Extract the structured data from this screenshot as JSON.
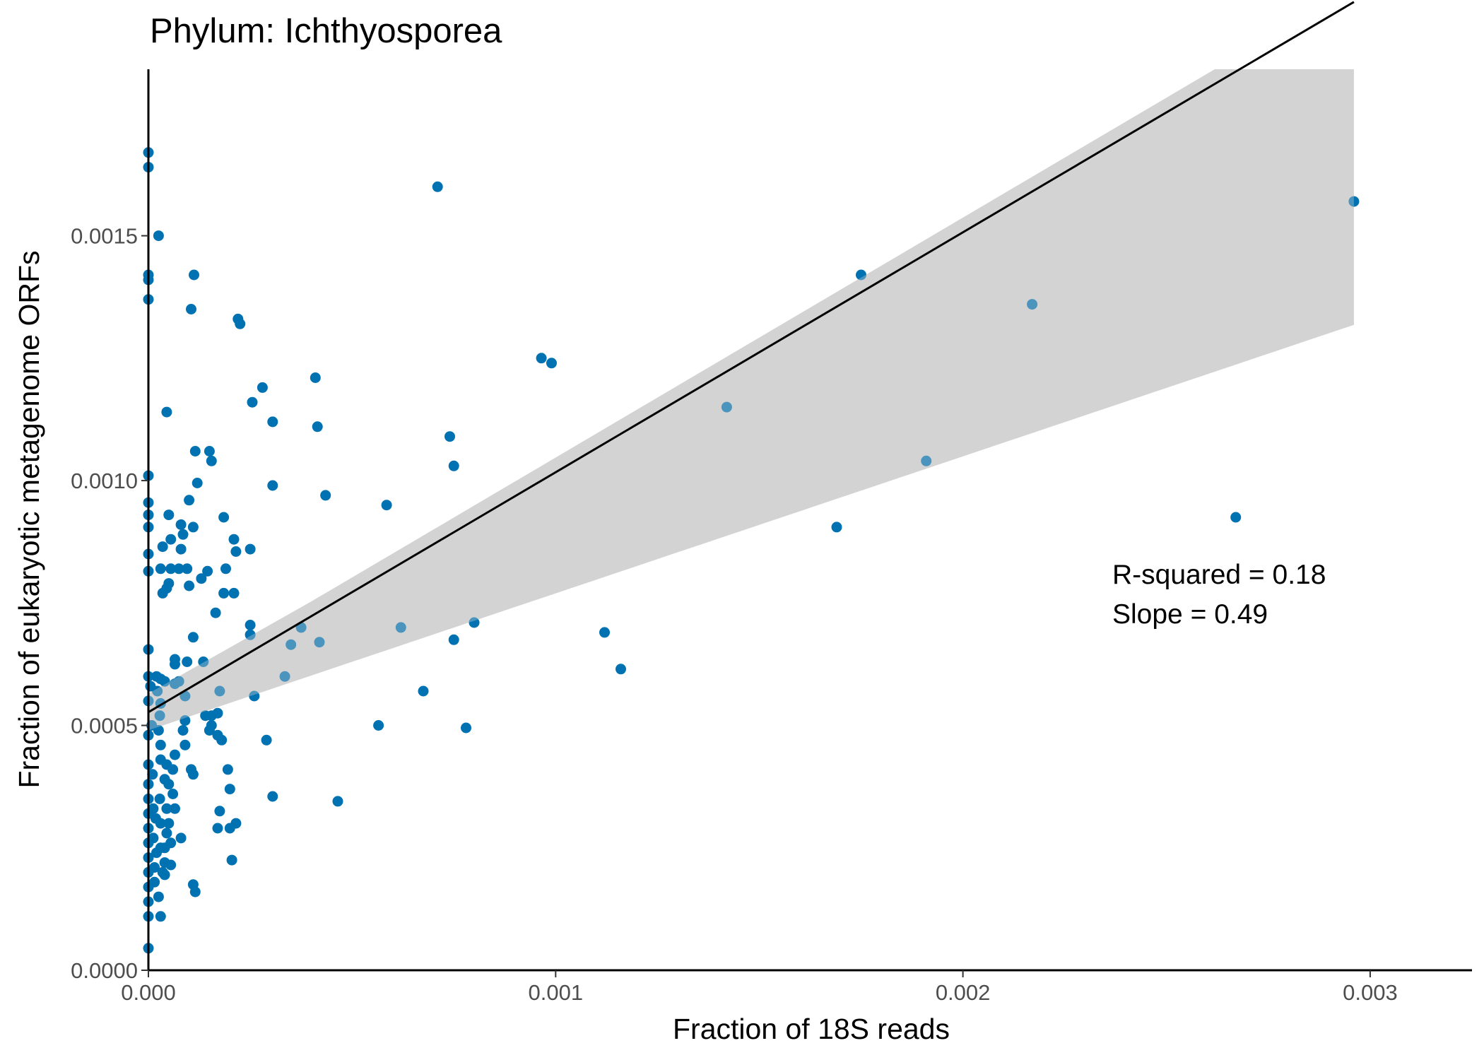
{
  "chart_data": {
    "type": "scatter",
    "title": "Phylum:  Ichthyosporea",
    "xlabel": "Fraction of 18S reads",
    "ylabel": "Fraction of eukaryotic metagenome ORFs",
    "xlim": [
      0,
      0.00325
    ],
    "ylim": [
      0,
      0.00184
    ],
    "x_ticks": [
      0,
      0.001,
      0.002,
      0.003
    ],
    "x_tick_labels": [
      "0.000",
      "0.001",
      "0.002",
      "0.003"
    ],
    "y_ticks": [
      0,
      0.0005,
      0.001,
      0.0015
    ],
    "y_tick_labels": [
      "0.0000",
      "0.0005",
      "0.0010",
      "0.0015"
    ],
    "grid": false,
    "point_color": "#0072B2",
    "fit_line_color": "#000000",
    "ci_band_color": "#D3D3D3",
    "fit": {
      "intercept": 0.000527,
      "slope": 0.49,
      "x_range": [
        0,
        0.00296
      ],
      "ci_lower": [
        [
          0,
          0.00049
        ],
        [
          0.00296,
          0.001318
        ]
      ],
      "ci_upper": [
        [
          0,
          0.000565
        ],
        [
          0.00296,
          0.001957
        ]
      ]
    },
    "annotations": [
      "R-squared =  0.18",
      "Slope =  0.49"
    ],
    "points": [
      [
        0.0,
        0.00167
      ],
      [
        0.0,
        0.00164
      ],
      [
        0.0,
        0.00142
      ],
      [
        0.0,
        0.00141
      ],
      [
        0.0,
        0.00137
      ],
      [
        0.0,
        0.00101
      ],
      [
        0.0,
        0.000955
      ],
      [
        0.0,
        0.00093
      ],
      [
        0.0,
        0.000905
      ],
      [
        0.0,
        0.00085
      ],
      [
        0.0,
        0.000815
      ],
      [
        0.0,
        0.000655
      ],
      [
        0.0,
        0.0006
      ],
      [
        0.0,
        0.00055
      ],
      [
        0.0,
        0.00048
      ],
      [
        0.0,
        0.00042
      ],
      [
        0.0,
        0.00038
      ],
      [
        0.0,
        0.00035
      ],
      [
        0.0,
        0.00032
      ],
      [
        0.0,
        0.00029
      ],
      [
        0.0,
        0.00026
      ],
      [
        0.0,
        0.00023
      ],
      [
        0.0,
        0.0002
      ],
      [
        0.0,
        0.00017
      ],
      [
        0.0,
        0.00014
      ],
      [
        0.0,
        0.00011
      ],
      [
        0.0,
        4.5e-05
      ],
      [
        5e-06,
        0.00058
      ],
      [
        8e-06,
        0.0005
      ],
      [
        1e-05,
        0.0004
      ],
      [
        1.2e-05,
        0.00033
      ],
      [
        1.2e-05,
        0.00027
      ],
      [
        1.5e-05,
        0.00021
      ],
      [
        1.5e-05,
        0.00018
      ],
      [
        1.8e-05,
        0.00031
      ],
      [
        2e-05,
        0.00024
      ],
      [
        2.5e-05,
        0.00015
      ],
      [
        3e-05,
        0.00011
      ],
      [
        2e-05,
        0.0006
      ],
      [
        2.2e-05,
        0.00057
      ],
      [
        3e-05,
        0.000595
      ],
      [
        3e-05,
        0.000545
      ],
      [
        2.8e-05,
        0.00052
      ],
      [
        2.5e-05,
        0.00049
      ],
      [
        3e-05,
        0.00046
      ],
      [
        3e-05,
        0.00043
      ],
      [
        2.8e-05,
        0.00035
      ],
      [
        3e-05,
        0.0003
      ],
      [
        3e-05,
        0.00025
      ],
      [
        3.5e-05,
        0.0002
      ],
      [
        2.5e-05,
        0.0015
      ],
      [
        3.5e-05,
        0.000865
      ],
      [
        3e-05,
        0.00082
      ],
      [
        3.5e-05,
        0.00077
      ],
      [
        4e-05,
        0.00059
      ],
      [
        4.5e-05,
        0.00042
      ],
      [
        4e-05,
        0.00039
      ],
      [
        4.5e-05,
        0.00033
      ],
      [
        4.5e-05,
        0.00028
      ],
      [
        4e-05,
        0.00025
      ],
      [
        4e-05,
        0.00022
      ],
      [
        4e-05,
        0.000195
      ],
      [
        5e-05,
        0.00038
      ],
      [
        5e-05,
        0.0003
      ],
      [
        5.5e-05,
        0.00026
      ],
      [
        5.5e-05,
        0.000215
      ],
      [
        6e-05,
        0.00041
      ],
      [
        6e-05,
        0.00036
      ],
      [
        6.5e-05,
        0.00033
      ],
      [
        4.5e-05,
        0.00078
      ],
      [
        4.5e-05,
        0.00114
      ],
      [
        5e-05,
        0.00079
      ],
      [
        5.5e-05,
        0.00082
      ],
      [
        5e-05,
        0.00093
      ],
      [
        5.5e-05,
        0.00088
      ],
      [
        6.5e-05,
        0.000635
      ],
      [
        6.5e-05,
        0.000625
      ],
      [
        6.5e-05,
        0.000585
      ],
      [
        6.5e-05,
        0.00044
      ],
      [
        7.5e-05,
        0.00082
      ],
      [
        8e-05,
        0.00091
      ],
      [
        8e-05,
        0.00086
      ],
      [
        8.5e-05,
        0.00089
      ],
      [
        7.5e-05,
        0.00059
      ],
      [
        9e-05,
        0.00056
      ],
      [
        8e-05,
        0.00027
      ],
      [
        9.5e-05,
        0.00063
      ],
      [
        9.5e-05,
        0.00082
      ],
      [
        0.0001,
        0.00096
      ],
      [
        0.0001,
        0.000785
      ],
      [
        0.000105,
        0.00135
      ],
      [
        0.000105,
        0.00041
      ],
      [
        0.00011,
        0.0004
      ],
      [
        0.00011,
        0.000175
      ],
      [
        0.000115,
        0.00016
      ],
      [
        0.000112,
        0.00142
      ],
      [
        0.00011,
        0.000905
      ],
      [
        0.00011,
        0.00068
      ],
      [
        0.000115,
        0.00106
      ],
      [
        0.00012,
        0.000995
      ],
      [
        9e-05,
        0.00051
      ],
      [
        8.5e-05,
        0.00049
      ],
      [
        9e-05,
        0.00046
      ],
      [
        0.00013,
        0.0008
      ],
      [
        0.000135,
        0.00063
      ],
      [
        0.00014,
        0.00052
      ],
      [
        0.000145,
        0.000815
      ],
      [
        0.00015,
        0.00106
      ],
      [
        0.000155,
        0.00104
      ],
      [
        0.00015,
        0.00049
      ],
      [
        0.000155,
        0.00052
      ],
      [
        0.000155,
        0.0005
      ],
      [
        0.000165,
        0.00073
      ],
      [
        0.00017,
        0.00048
      ],
      [
        0.00017,
        0.000525
      ],
      [
        0.00017,
        0.00029
      ],
      [
        0.000175,
        0.00057
      ],
      [
        0.000175,
        0.000325
      ],
      [
        0.00018,
        0.00047
      ],
      [
        0.000185,
        0.000925
      ],
      [
        0.000185,
        0.00077
      ],
      [
        0.00019,
        0.00082
      ],
      [
        0.000195,
        0.00041
      ],
      [
        0.0002,
        0.00037
      ],
      [
        0.0002,
        0.00029
      ],
      [
        0.000205,
        0.000225
      ],
      [
        0.00021,
        0.00088
      ],
      [
        0.00021,
        0.00077
      ],
      [
        0.000215,
        0.000855
      ],
      [
        0.000215,
        0.0003
      ],
      [
        0.00022,
        0.00133
      ],
      [
        0.000225,
        0.00132
      ],
      [
        0.00025,
        0.00086
      ],
      [
        0.00025,
        0.000705
      ],
      [
        0.00025,
        0.000685
      ],
      [
        0.000255,
        0.00116
      ],
      [
        0.00026,
        0.00056
      ],
      [
        0.00028,
        0.00119
      ],
      [
        0.00029,
        0.00047
      ],
      [
        0.000305,
        0.00112
      ],
      [
        0.000305,
        0.00099
      ],
      [
        0.000305,
        0.000355
      ],
      [
        0.000335,
        0.0006
      ],
      [
        0.00035,
        0.000665
      ],
      [
        0.000375,
        0.0007
      ],
      [
        0.00041,
        0.00121
      ],
      [
        0.000415,
        0.00111
      ],
      [
        0.00042,
        0.00067
      ],
      [
        0.000435,
        0.00097
      ],
      [
        0.000465,
        0.000345
      ],
      [
        0.000565,
        0.0005
      ],
      [
        0.000585,
        0.00095
      ],
      [
        0.00062,
        0.0007
      ],
      [
        0.000675,
        0.00057
      ],
      [
        0.00071,
        0.0016
      ],
      [
        0.00074,
        0.00109
      ],
      [
        0.00075,
        0.000675
      ],
      [
        0.00075,
        0.00103
      ],
      [
        0.00078,
        0.000495
      ],
      [
        0.0008,
        0.00071
      ],
      [
        0.000965,
        0.00125
      ],
      [
        0.00099,
        0.00124
      ],
      [
        0.00112,
        0.00069
      ],
      [
        0.00116,
        0.000615
      ],
      [
        0.00142,
        0.00115
      ],
      [
        0.00169,
        0.000905
      ],
      [
        0.00175,
        0.00142
      ],
      [
        0.00191,
        0.00104
      ],
      [
        0.00217,
        0.00136
      ],
      [
        0.00267,
        0.000925
      ],
      [
        0.00296,
        0.00157
      ]
    ]
  }
}
